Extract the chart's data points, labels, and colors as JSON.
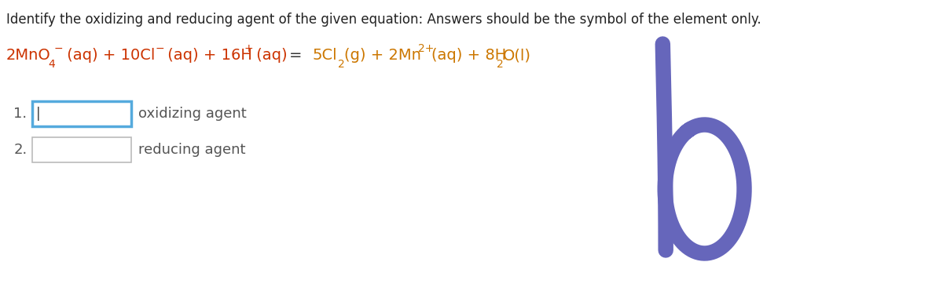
{
  "bg_color": "#ffffff",
  "title_text": "Identify the oxidizing and reducing agent of the given equation: Answers should be the symbol of the element only.",
  "title_color": "#222222",
  "title_fontsize": 12,
  "lc": "#cc3300",
  "rc": "#cc7700",
  "eq_fontsize": 14,
  "eq_sub_fontsize": 10,
  "eq_sup_fontsize": 10,
  "item1_label": "1.",
  "item2_label": "2.",
  "item1_text": "oxidizing agent",
  "item2_text": "reducing agent",
  "box1_border_color": "#55aadd",
  "box2_border_color": "#bbbbbb",
  "handwriting_color": "#6666bb",
  "label_fontsize": 13,
  "label_color": "#555555"
}
